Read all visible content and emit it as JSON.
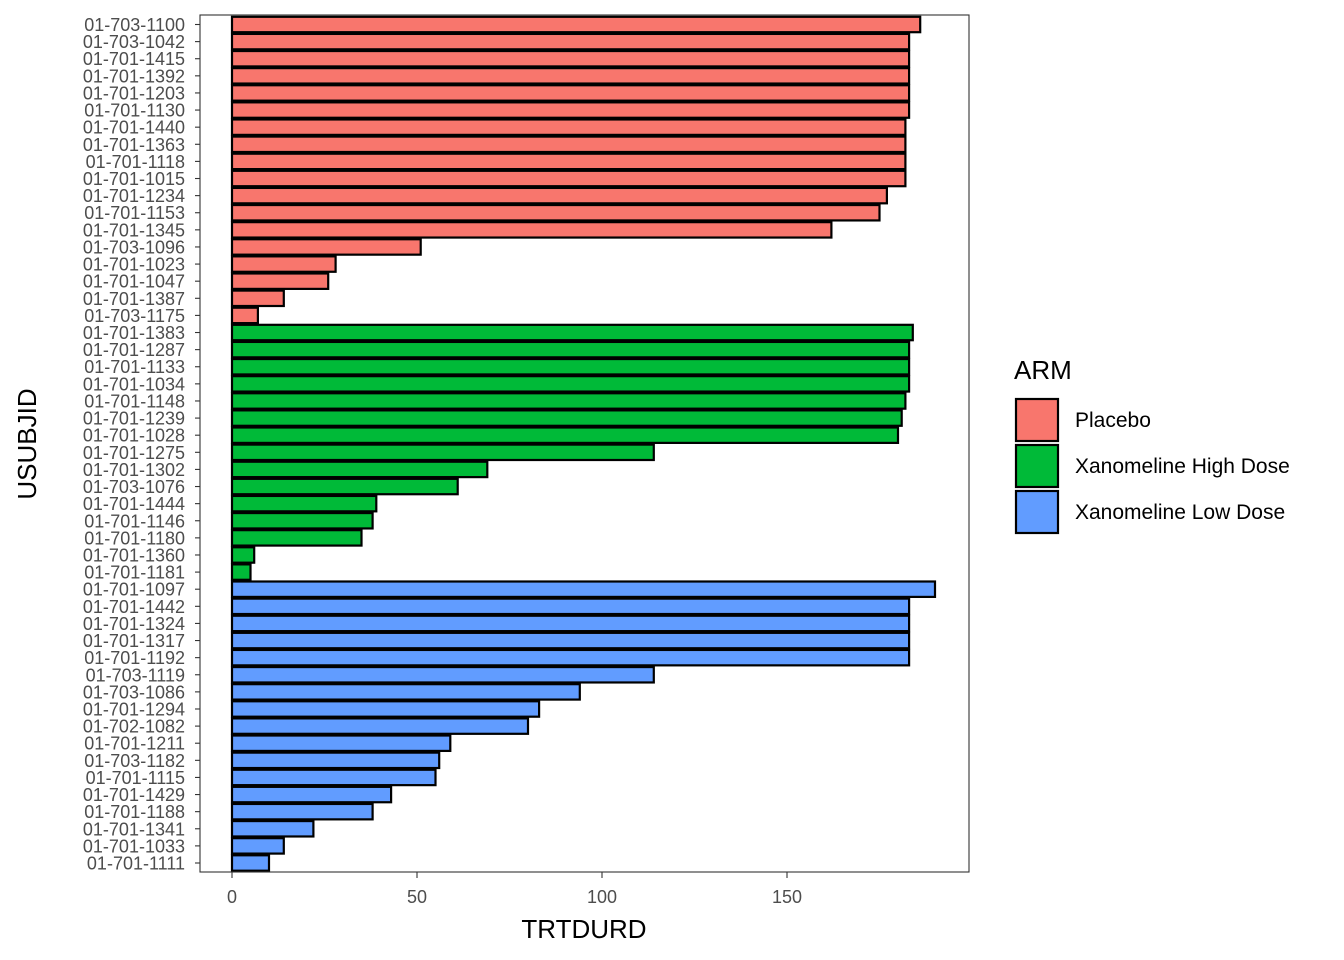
{
  "chart_data": {
    "type": "bar",
    "orientation": "horizontal",
    "xlabel": "TRTDURD",
    "ylabel": "USUBJID",
    "xlim": [
      -8,
      200
    ],
    "x_ticks": [
      0,
      50,
      100,
      150
    ],
    "grid": false,
    "legend": {
      "title": "ARM",
      "position": "right",
      "entries": [
        {
          "name": "Placebo",
          "color": "#F8766D"
        },
        {
          "name": "Xanomeline High Dose",
          "color": "#00BA38"
        },
        {
          "name": "Xanomeline Low Dose",
          "color": "#619CFF"
        }
      ]
    },
    "bars": [
      {
        "id": "01-703-1100",
        "value": 186,
        "arm": "Placebo"
      },
      {
        "id": "01-703-1042",
        "value": 183,
        "arm": "Placebo"
      },
      {
        "id": "01-701-1415",
        "value": 183,
        "arm": "Placebo"
      },
      {
        "id": "01-701-1392",
        "value": 183,
        "arm": "Placebo"
      },
      {
        "id": "01-701-1203",
        "value": 183,
        "arm": "Placebo"
      },
      {
        "id": "01-701-1130",
        "value": 183,
        "arm": "Placebo"
      },
      {
        "id": "01-701-1440",
        "value": 182,
        "arm": "Placebo"
      },
      {
        "id": "01-701-1363",
        "value": 182,
        "arm": "Placebo"
      },
      {
        "id": "01-701-1118",
        "value": 182,
        "arm": "Placebo"
      },
      {
        "id": "01-701-1015",
        "value": 182,
        "arm": "Placebo"
      },
      {
        "id": "01-701-1234",
        "value": 177,
        "arm": "Placebo"
      },
      {
        "id": "01-701-1153",
        "value": 175,
        "arm": "Placebo"
      },
      {
        "id": "01-701-1345",
        "value": 162,
        "arm": "Placebo"
      },
      {
        "id": "01-703-1096",
        "value": 51,
        "arm": "Placebo"
      },
      {
        "id": "01-701-1023",
        "value": 28,
        "arm": "Placebo"
      },
      {
        "id": "01-701-1047",
        "value": 26,
        "arm": "Placebo"
      },
      {
        "id": "01-701-1387",
        "value": 14,
        "arm": "Placebo"
      },
      {
        "id": "01-703-1175",
        "value": 7,
        "arm": "Placebo"
      },
      {
        "id": "01-701-1383",
        "value": 184,
        "arm": "Xanomeline High Dose"
      },
      {
        "id": "01-701-1287",
        "value": 183,
        "arm": "Xanomeline High Dose"
      },
      {
        "id": "01-701-1133",
        "value": 183,
        "arm": "Xanomeline High Dose"
      },
      {
        "id": "01-701-1034",
        "value": 183,
        "arm": "Xanomeline High Dose"
      },
      {
        "id": "01-701-1148",
        "value": 182,
        "arm": "Xanomeline High Dose"
      },
      {
        "id": "01-701-1239",
        "value": 181,
        "arm": "Xanomeline High Dose"
      },
      {
        "id": "01-701-1028",
        "value": 180,
        "arm": "Xanomeline High Dose"
      },
      {
        "id": "01-701-1275",
        "value": 114,
        "arm": "Xanomeline High Dose"
      },
      {
        "id": "01-701-1302",
        "value": 69,
        "arm": "Xanomeline High Dose"
      },
      {
        "id": "01-703-1076",
        "value": 61,
        "arm": "Xanomeline High Dose"
      },
      {
        "id": "01-701-1444",
        "value": 39,
        "arm": "Xanomeline High Dose"
      },
      {
        "id": "01-701-1146",
        "value": 38,
        "arm": "Xanomeline High Dose"
      },
      {
        "id": "01-701-1180",
        "value": 35,
        "arm": "Xanomeline High Dose"
      },
      {
        "id": "01-701-1360",
        "value": 6,
        "arm": "Xanomeline High Dose"
      },
      {
        "id": "01-701-1181",
        "value": 5,
        "arm": "Xanomeline High Dose"
      },
      {
        "id": "01-701-1097",
        "value": 190,
        "arm": "Xanomeline Low Dose"
      },
      {
        "id": "01-701-1442",
        "value": 183,
        "arm": "Xanomeline Low Dose"
      },
      {
        "id": "01-701-1324",
        "value": 183,
        "arm": "Xanomeline Low Dose"
      },
      {
        "id": "01-701-1317",
        "value": 183,
        "arm": "Xanomeline Low Dose"
      },
      {
        "id": "01-701-1192",
        "value": 183,
        "arm": "Xanomeline Low Dose"
      },
      {
        "id": "01-703-1119",
        "value": 114,
        "arm": "Xanomeline Low Dose"
      },
      {
        "id": "01-703-1086",
        "value": 94,
        "arm": "Xanomeline Low Dose"
      },
      {
        "id": "01-701-1294",
        "value": 83,
        "arm": "Xanomeline Low Dose"
      },
      {
        "id": "01-702-1082",
        "value": 80,
        "arm": "Xanomeline Low Dose"
      },
      {
        "id": "01-701-1211",
        "value": 59,
        "arm": "Xanomeline Low Dose"
      },
      {
        "id": "01-703-1182",
        "value": 56,
        "arm": "Xanomeline Low Dose"
      },
      {
        "id": "01-701-1115",
        "value": 55,
        "arm": "Xanomeline Low Dose"
      },
      {
        "id": "01-701-1429",
        "value": 43,
        "arm": "Xanomeline Low Dose"
      },
      {
        "id": "01-701-1188",
        "value": 38,
        "arm": "Xanomeline Low Dose"
      },
      {
        "id": "01-701-1341",
        "value": 22,
        "arm": "Xanomeline Low Dose"
      },
      {
        "id": "01-701-1033",
        "value": 14,
        "arm": "Xanomeline Low Dose"
      },
      {
        "id": "01-701-1111",
        "value": 10,
        "arm": "Xanomeline Low Dose"
      }
    ]
  }
}
